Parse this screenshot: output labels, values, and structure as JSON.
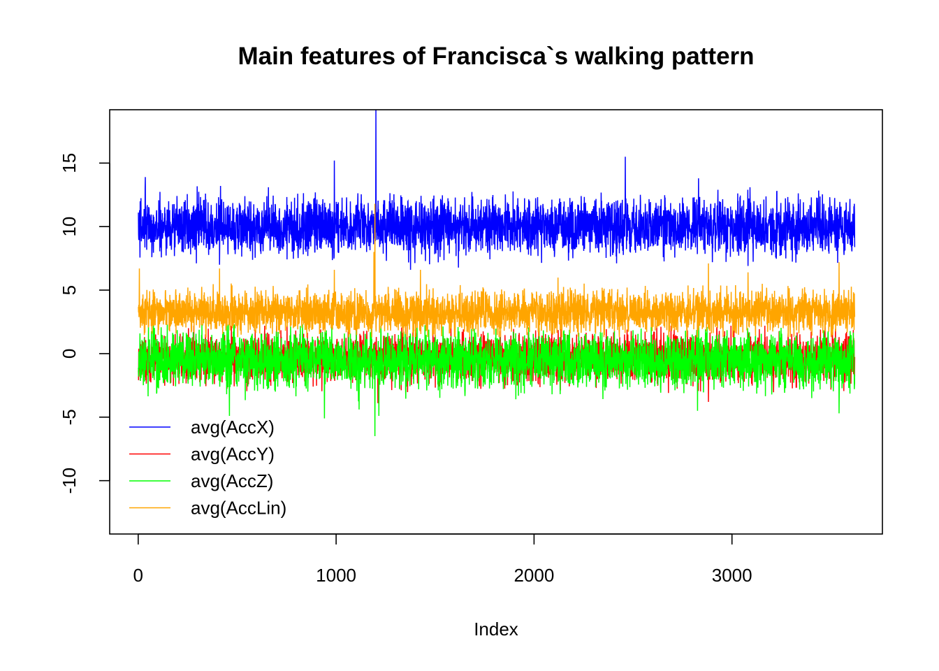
{
  "chart_data": {
    "type": "line",
    "title": "Main features of Francisca`s walking pattern",
    "xlabel": "Index",
    "ylabel": "",
    "xlim": [
      -144,
      3760
    ],
    "ylim": [
      -14.2,
      19.2
    ],
    "x_ticks": [
      0,
      1000,
      2000,
      3000
    ],
    "y_ticks": [
      -10,
      -5,
      0,
      5,
      10,
      15
    ],
    "n_points": 3620,
    "grid": false,
    "legend_position": "bottom-left",
    "series": [
      {
        "name": "avg(AccX)",
        "color": "#0000ff",
        "base": 10.0,
        "noise": 1.1,
        "range": [
          6.5,
          19.2
        ],
        "spikes": [
          [
            1200,
            19.2
          ],
          [
            2460,
            15.5
          ],
          [
            990,
            15.2
          ],
          [
            415,
            13.2
          ],
          [
            35,
            13.9
          ],
          [
            2830,
            13.8
          ],
          [
            3090,
            13.1
          ],
          [
            1375,
            6.6
          ],
          [
            410,
            7.0
          ],
          [
            3080,
            6.9
          ],
          [
            2900,
            7.2
          ]
        ]
      },
      {
        "name": "avg(AccY)",
        "color": "#ff0000",
        "base": -0.3,
        "noise": 0.95,
        "range": [
          -4.2,
          2.2
        ],
        "spikes": [
          [
            1210,
            -3.9
          ],
          [
            2880,
            -3.8
          ],
          [
            3540,
            1.3
          ]
        ]
      },
      {
        "name": "avg(AccZ)",
        "color": "#00ff00",
        "base": -0.5,
        "noise": 1.05,
        "range": [
          -6.5,
          2.3
        ],
        "spikes": [
          [
            1195,
            -6.5
          ],
          [
            460,
            -4.9
          ],
          [
            940,
            -5.1
          ],
          [
            1115,
            -4.4
          ],
          [
            2825,
            -4.5
          ],
          [
            3540,
            -4.7
          ],
          [
            1215,
            -4.9
          ]
        ]
      },
      {
        "name": "avg(AccLin)",
        "color": "#ffa500",
        "base": 3.3,
        "noise": 0.85,
        "range": [
          1.3,
          11.8
        ],
        "spikes": [
          [
            1195,
            11.8
          ],
          [
            1190,
            8.0
          ],
          [
            2880,
            7.1
          ],
          [
            3540,
            7.2
          ],
          [
            410,
            6.7
          ],
          [
            990,
            6.6
          ],
          [
            5,
            6.7
          ],
          [
            1425,
            6.6
          ],
          [
            3080,
            6.4
          ]
        ]
      }
    ]
  }
}
